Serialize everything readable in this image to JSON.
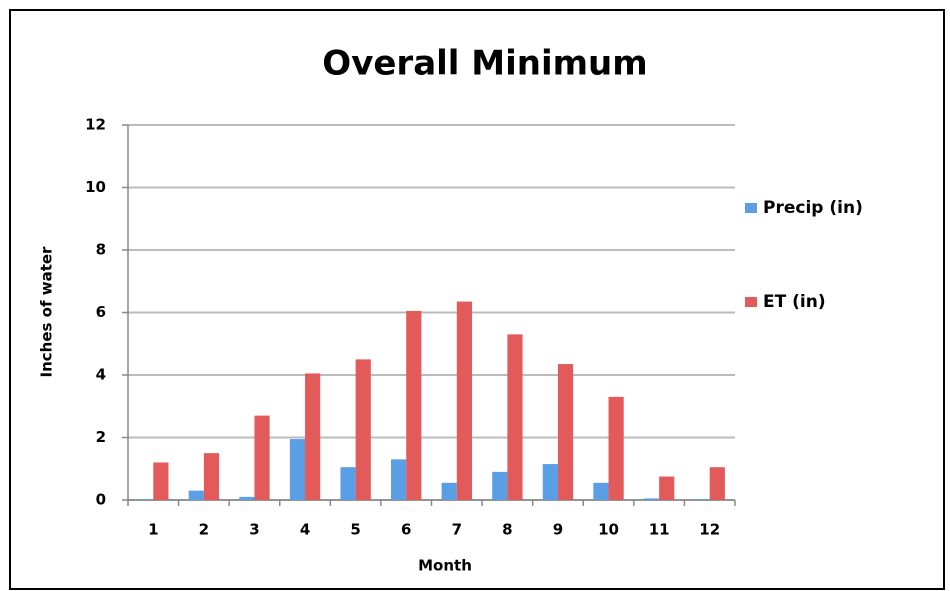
{
  "chart_data": {
    "type": "bar",
    "title": "Overall Minimum",
    "x_label": "Month",
    "y_label": "Inches of water",
    "categories": [
      "1",
      "2",
      "3",
      "4",
      "5",
      "6",
      "7",
      "8",
      "9",
      "10",
      "11",
      "12"
    ],
    "series": [
      {
        "name": "Precip (in)",
        "color": "#5a9fe6",
        "values": [
          0.02,
          0.3,
          0.1,
          1.95,
          1.05,
          1.3,
          0.55,
          0.9,
          1.15,
          0.55,
          0.05,
          0.03
        ]
      },
      {
        "name": "ET (in)",
        "color": "#e35a5a",
        "values": [
          1.2,
          1.5,
          2.7,
          4.05,
          4.5,
          6.05,
          6.35,
          5.3,
          4.35,
          3.3,
          0.75,
          1.05
        ]
      }
    ],
    "ylim": [
      0,
      12
    ],
    "yticks": [
      0,
      2,
      4,
      6,
      8,
      10,
      12
    ],
    "grid": true,
    "legend": "right"
  }
}
